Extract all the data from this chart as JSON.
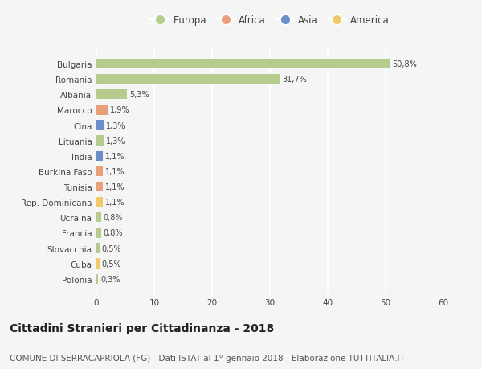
{
  "countries": [
    "Bulgaria",
    "Romania",
    "Albania",
    "Marocco",
    "Cina",
    "Lituania",
    "India",
    "Burkina Faso",
    "Tunisia",
    "Rep. Dominicana",
    "Ucraina",
    "Francia",
    "Slovacchia",
    "Cuba",
    "Polonia"
  ],
  "values": [
    50.8,
    31.7,
    5.3,
    1.9,
    1.3,
    1.3,
    1.1,
    1.1,
    1.1,
    1.1,
    0.8,
    0.8,
    0.5,
    0.5,
    0.3
  ],
  "labels": [
    "50,8%",
    "31,7%",
    "5,3%",
    "1,9%",
    "1,3%",
    "1,3%",
    "1,1%",
    "1,1%",
    "1,1%",
    "1,1%",
    "0,8%",
    "0,8%",
    "0,5%",
    "0,5%",
    "0,3%"
  ],
  "continents": [
    "Europa",
    "Europa",
    "Europa",
    "Africa",
    "Asia",
    "Europa",
    "Asia",
    "Africa",
    "Africa",
    "America",
    "Europa",
    "Europa",
    "Europa",
    "America",
    "Europa"
  ],
  "colors": {
    "Europa": "#b5cc8e",
    "Africa": "#e8a07a",
    "Asia": "#6b8fc9",
    "America": "#f0c96a"
  },
  "xlim": [
    0,
    60
  ],
  "xticks": [
    0,
    10,
    20,
    30,
    40,
    50,
    60
  ],
  "background_color": "#f5f5f5",
  "grid_color": "#ffffff",
  "title": "Cittadini Stranieri per Cittadinanza - 2018",
  "subtitle": "COMUNE DI SERRACAPRIOLA (FG) - Dati ISTAT al 1° gennaio 2018 - Elaborazione TUTTITALIA.IT",
  "title_fontsize": 10,
  "subtitle_fontsize": 7.5,
  "bar_height": 0.65,
  "legend_order": [
    "Europa",
    "Africa",
    "Asia",
    "America"
  ]
}
